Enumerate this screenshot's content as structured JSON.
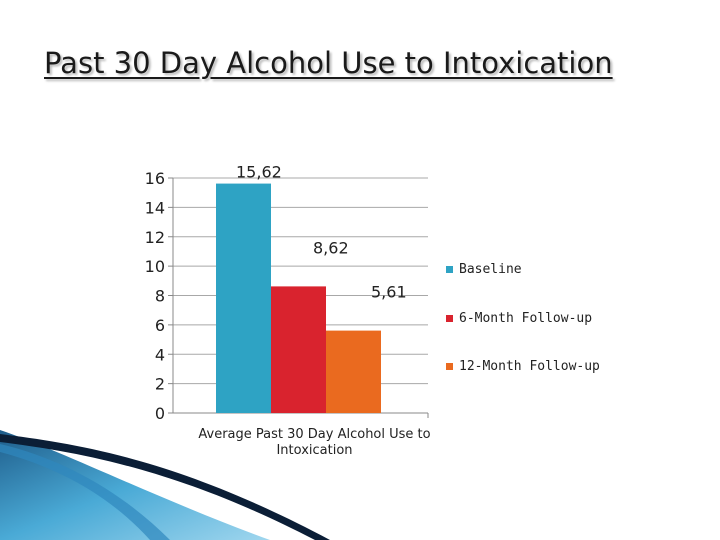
{
  "slide": {
    "title": "Past 30 Day Alcohol Use to Intoxication"
  },
  "chart_data": {
    "type": "bar",
    "title": "",
    "categories": [
      "Average Past 30 Day Alcohol Use to Intoxication"
    ],
    "category_label_lines": [
      "Average Past 30 Day Alcohol Use to",
      "Intoxication"
    ],
    "series": [
      {
        "name": "Baseline",
        "values": [
          15.62
        ],
        "label": "15,62",
        "color": "#2ea3c4"
      },
      {
        "name": "6-Month Follow-up",
        "values": [
          8.62
        ],
        "label": "8,62",
        "color": "#d9232e"
      },
      {
        "name": "12-Month Follow-up",
        "values": [
          5.61
        ],
        "label": "5,61",
        "color": "#ea6a1f"
      }
    ],
    "y_ticks": [
      0,
      2,
      4,
      6,
      8,
      10,
      12,
      14,
      16
    ],
    "ylim": [
      0,
      16
    ],
    "xlabel": "",
    "ylabel": "",
    "grid": true,
    "legend_position": "right"
  }
}
